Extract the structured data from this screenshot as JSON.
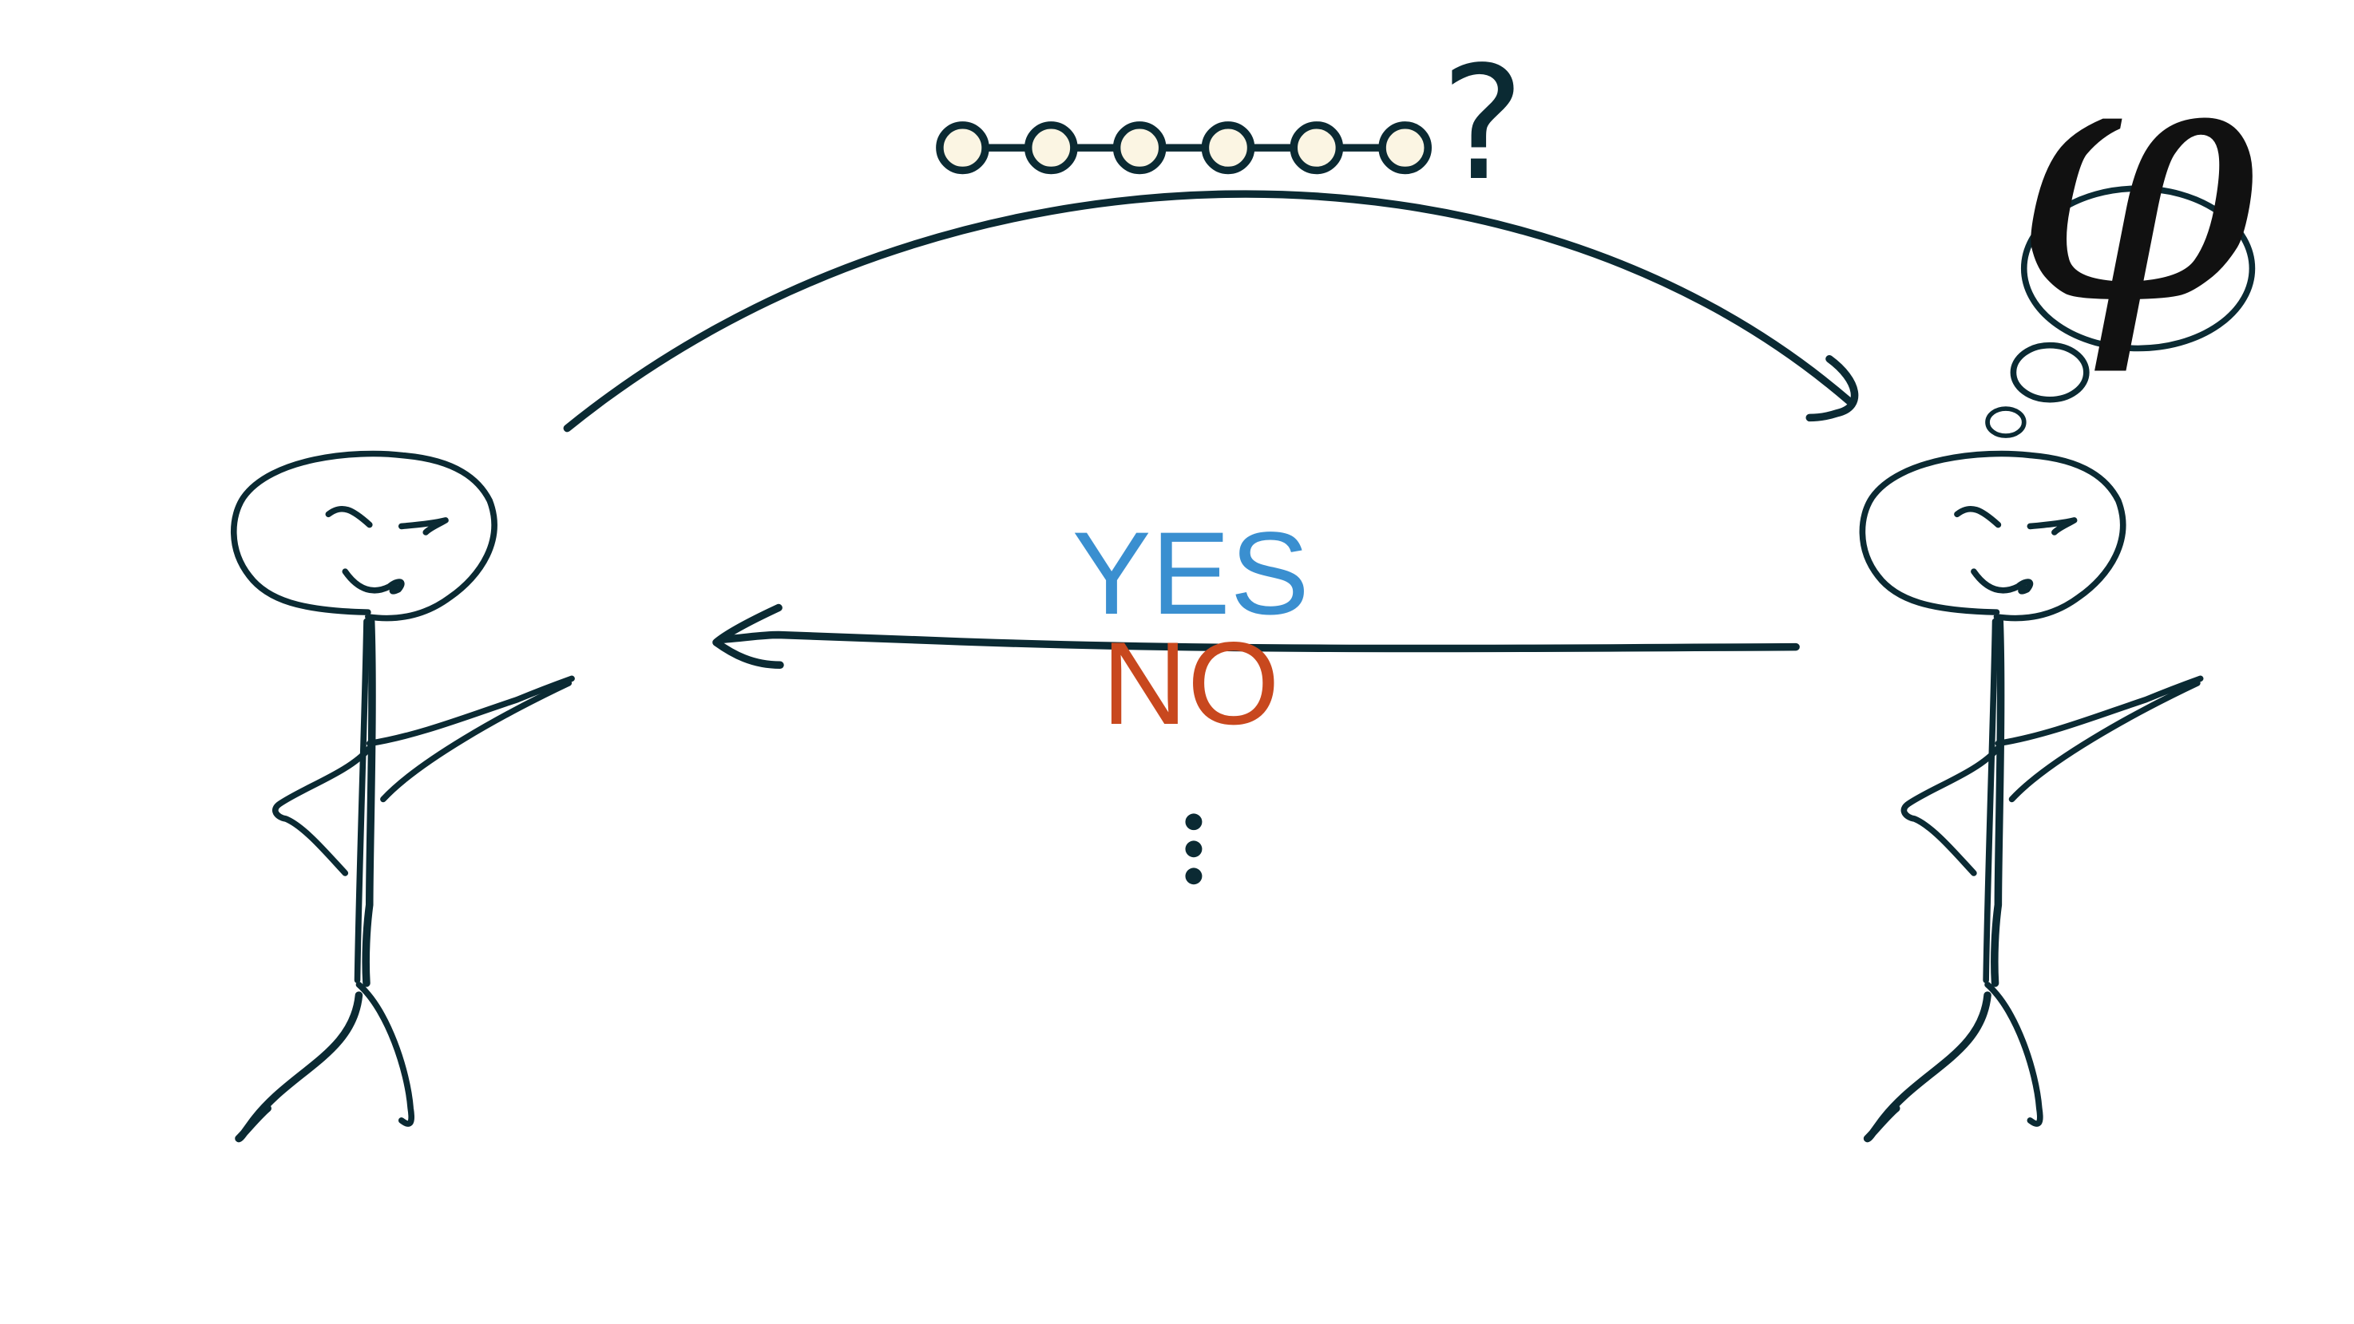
{
  "diagram": {
    "query": {
      "node_count": 6,
      "question_mark": "?"
    },
    "responses": {
      "yes_label": "YES",
      "no_label": "NO",
      "more_indicator": "⋮"
    },
    "thought": {
      "symbol": "φ"
    }
  },
  "colors": {
    "ink": "#0b2a33",
    "node_fill": "#fbf5e3",
    "yes": "#3a8fd0",
    "no": "#c8481e",
    "background": "#ffffff"
  }
}
